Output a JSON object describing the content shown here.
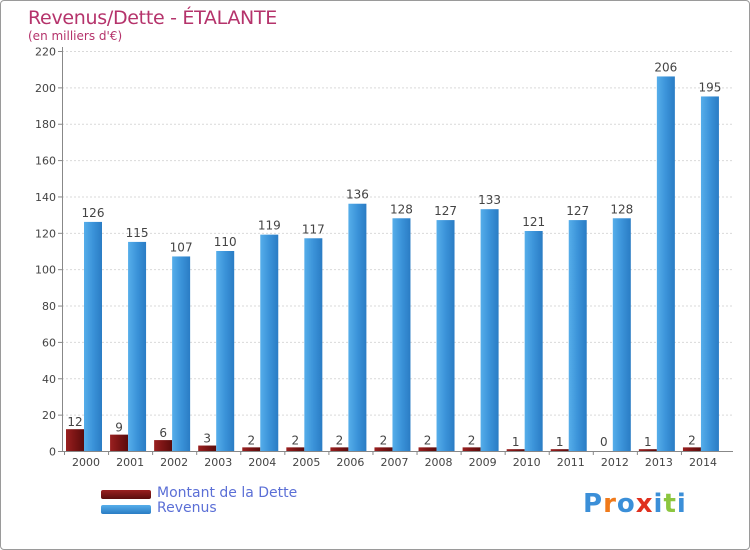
{
  "header": {
    "title": "Revenus/Dette - ÉTALANTE",
    "subtitle": "(en milliers d'€)"
  },
  "legend": {
    "items": [
      {
        "label": "Montant de la Dette",
        "color": "#7a1414"
      },
      {
        "label": "Revenus",
        "color": "#3b93d9"
      }
    ]
  },
  "logo": {
    "text": "Proxiti",
    "colors": [
      "#3b8fd8",
      "#f07a1a",
      "#3b8fd8",
      "#e0301e",
      "#3b8fd8",
      "#8cc63f",
      "#3b8fd8"
    ]
  },
  "chart_data": {
    "type": "bar",
    "categories": [
      "2000",
      "2001",
      "2002",
      "2003",
      "2004",
      "2005",
      "2006",
      "2007",
      "2008",
      "2009",
      "2010",
      "2011",
      "2012",
      "2013",
      "2014"
    ],
    "series": [
      {
        "name": "Montant de la Dette",
        "color": "#7a1414",
        "values": [
          12,
          9,
          6,
          3,
          2,
          2,
          2,
          2,
          2,
          2,
          1,
          1,
          0,
          1,
          2
        ]
      },
      {
        "name": "Revenus",
        "color": "#3b93d9",
        "values": [
          126,
          115,
          107,
          110,
          119,
          117,
          136,
          128,
          127,
          133,
          121,
          127,
          128,
          206,
          195
        ]
      }
    ],
    "ylim": [
      0,
      220
    ],
    "yticks": [
      0,
      20,
      40,
      60,
      80,
      100,
      120,
      140,
      160,
      180,
      200,
      220
    ],
    "grid": true,
    "legend_position": "bottom-left"
  }
}
